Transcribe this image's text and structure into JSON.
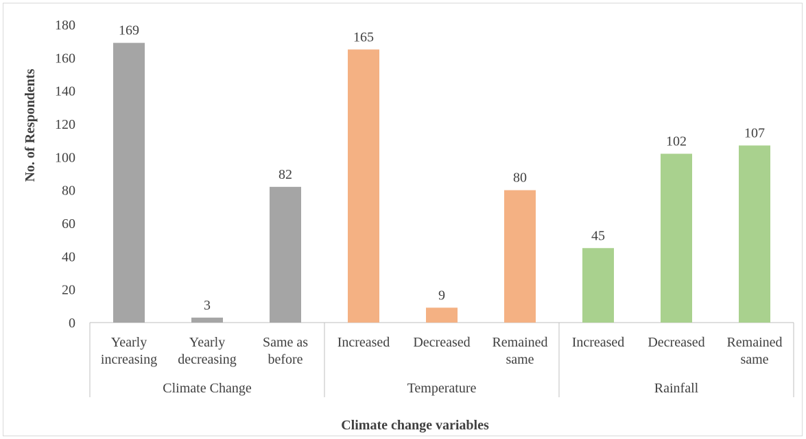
{
  "chart_data": {
    "type": "bar",
    "xlabel": "Climate change variables",
    "ylabel": "No. of  Respondents",
    "ylim": [
      0,
      180
    ],
    "yticks": [
      "0",
      "20",
      "40",
      "60",
      "80",
      "100",
      "120",
      "140",
      "160",
      "180"
    ],
    "grid": false,
    "groups": [
      {
        "name": "Climate Change",
        "color": "#a5a5a5",
        "categories": [
          [
            "Yearly",
            "increasing"
          ],
          [
            "Yearly",
            "decreasing"
          ],
          [
            "Same as",
            "before"
          ]
        ],
        "values": [
          169,
          3,
          82
        ],
        "value_labels": [
          "169",
          "3",
          "82"
        ]
      },
      {
        "name": "Temperature",
        "color": "#f4b183",
        "categories": [
          [
            "Increased"
          ],
          [
            "Decreased"
          ],
          [
            "Remained",
            "same"
          ]
        ],
        "values": [
          165,
          9,
          80
        ],
        "value_labels": [
          "165",
          "9",
          "80"
        ]
      },
      {
        "name": "Rainfall",
        "color": "#a9d18e",
        "categories": [
          [
            "Increased"
          ],
          [
            "Decreased"
          ],
          [
            "Remained",
            "same"
          ]
        ],
        "values": [
          45,
          102,
          107
        ],
        "value_labels": [
          "45",
          "102",
          "107"
        ]
      }
    ]
  }
}
